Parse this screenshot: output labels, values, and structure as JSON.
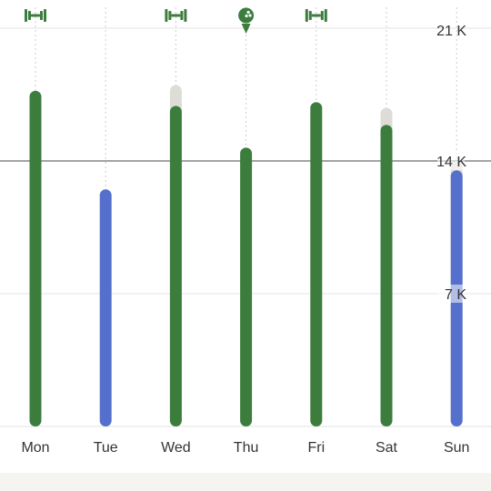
{
  "colors": {
    "workout": "#3c7d3e",
    "no_workout": "#5570cc",
    "goal_extension": "#dedcd7",
    "gridline": "#e3e3e3",
    "daily_guide": "#cccccc",
    "goal_line": "#4a4a4a",
    "bottom_band": "#f6f4f1"
  },
  "chart_data": {
    "type": "bar",
    "categories": [
      "Mon",
      "Tue",
      "Wed",
      "Thu",
      "Fri",
      "Sat",
      "Sun"
    ],
    "values": [
      17.7,
      12.5,
      16.9,
      14.7,
      17.1,
      15.9,
      13.5
    ],
    "extended_to": [
      null,
      null,
      18.0,
      null,
      null,
      16.8,
      14.0
    ],
    "activity_icon": [
      "dumbbell-icon",
      null,
      "dumbbell-icon",
      "bowling-pin-icon",
      "dumbbell-icon",
      null,
      null
    ],
    "workout_day": [
      true,
      false,
      true,
      true,
      true,
      true,
      false
    ],
    "goal": 14,
    "ylim": [
      0,
      21
    ],
    "y_ticks": [
      {
        "value": 7,
        "label": "7 K"
      },
      {
        "value": 14,
        "label": "14 K"
      },
      {
        "value": 21,
        "label": "21 K"
      }
    ],
    "grid": true
  }
}
